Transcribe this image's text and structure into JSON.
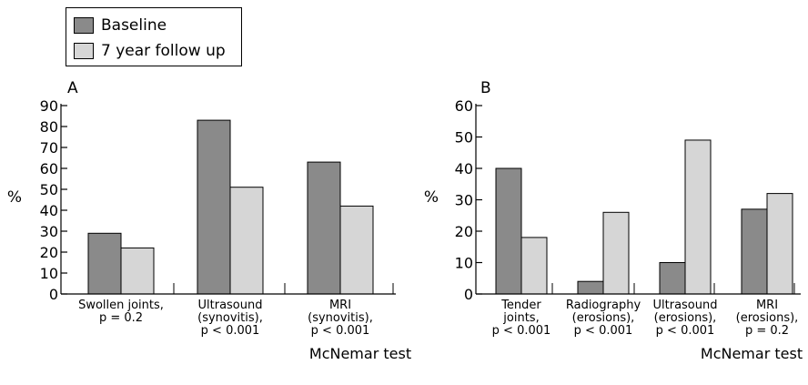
{
  "legend": {
    "items": [
      {
        "label": "Baseline",
        "color": "#8a8a8a"
      },
      {
        "label": "7 year follow up",
        "color": "#d6d6d6"
      }
    ]
  },
  "chart_data": [
    {
      "type": "bar",
      "panel_label": "A",
      "ylabel": "%",
      "xlabel": "McNemar test",
      "ylim": [
        0,
        90
      ],
      "yticks": [
        0,
        10,
        20,
        30,
        40,
        50,
        60,
        70,
        80,
        90
      ],
      "categories": [
        [
          "Swollen joints,",
          "p = 0.2"
        ],
        [
          "Ultrasound",
          "(synovitis),",
          "p < 0.001"
        ],
        [
          "MRI",
          "(synovitis),",
          "p < 0.001"
        ]
      ],
      "series": [
        {
          "name": "Baseline",
          "values": [
            29,
            83,
            63
          ]
        },
        {
          "name": "7 year follow up",
          "values": [
            22,
            51,
            42
          ]
        }
      ]
    },
    {
      "type": "bar",
      "panel_label": "B",
      "ylabel": "%",
      "xlabel": "McNemar test",
      "ylim": [
        0,
        60
      ],
      "yticks": [
        0,
        10,
        20,
        30,
        40,
        50,
        60
      ],
      "categories": [
        [
          "Tender",
          "joints,",
          "p < 0.001"
        ],
        [
          "Radiography",
          "(erosions),",
          "p < 0.001"
        ],
        [
          "Ultrasound",
          "(erosions),",
          "p < 0.001"
        ],
        [
          "MRI",
          "(erosions),",
          "p = 0.2"
        ]
      ],
      "series": [
        {
          "name": "Baseline",
          "values": [
            40,
            4,
            10,
            27
          ]
        },
        {
          "name": "7 year follow up",
          "values": [
            18,
            26,
            49,
            32
          ]
        }
      ]
    }
  ]
}
